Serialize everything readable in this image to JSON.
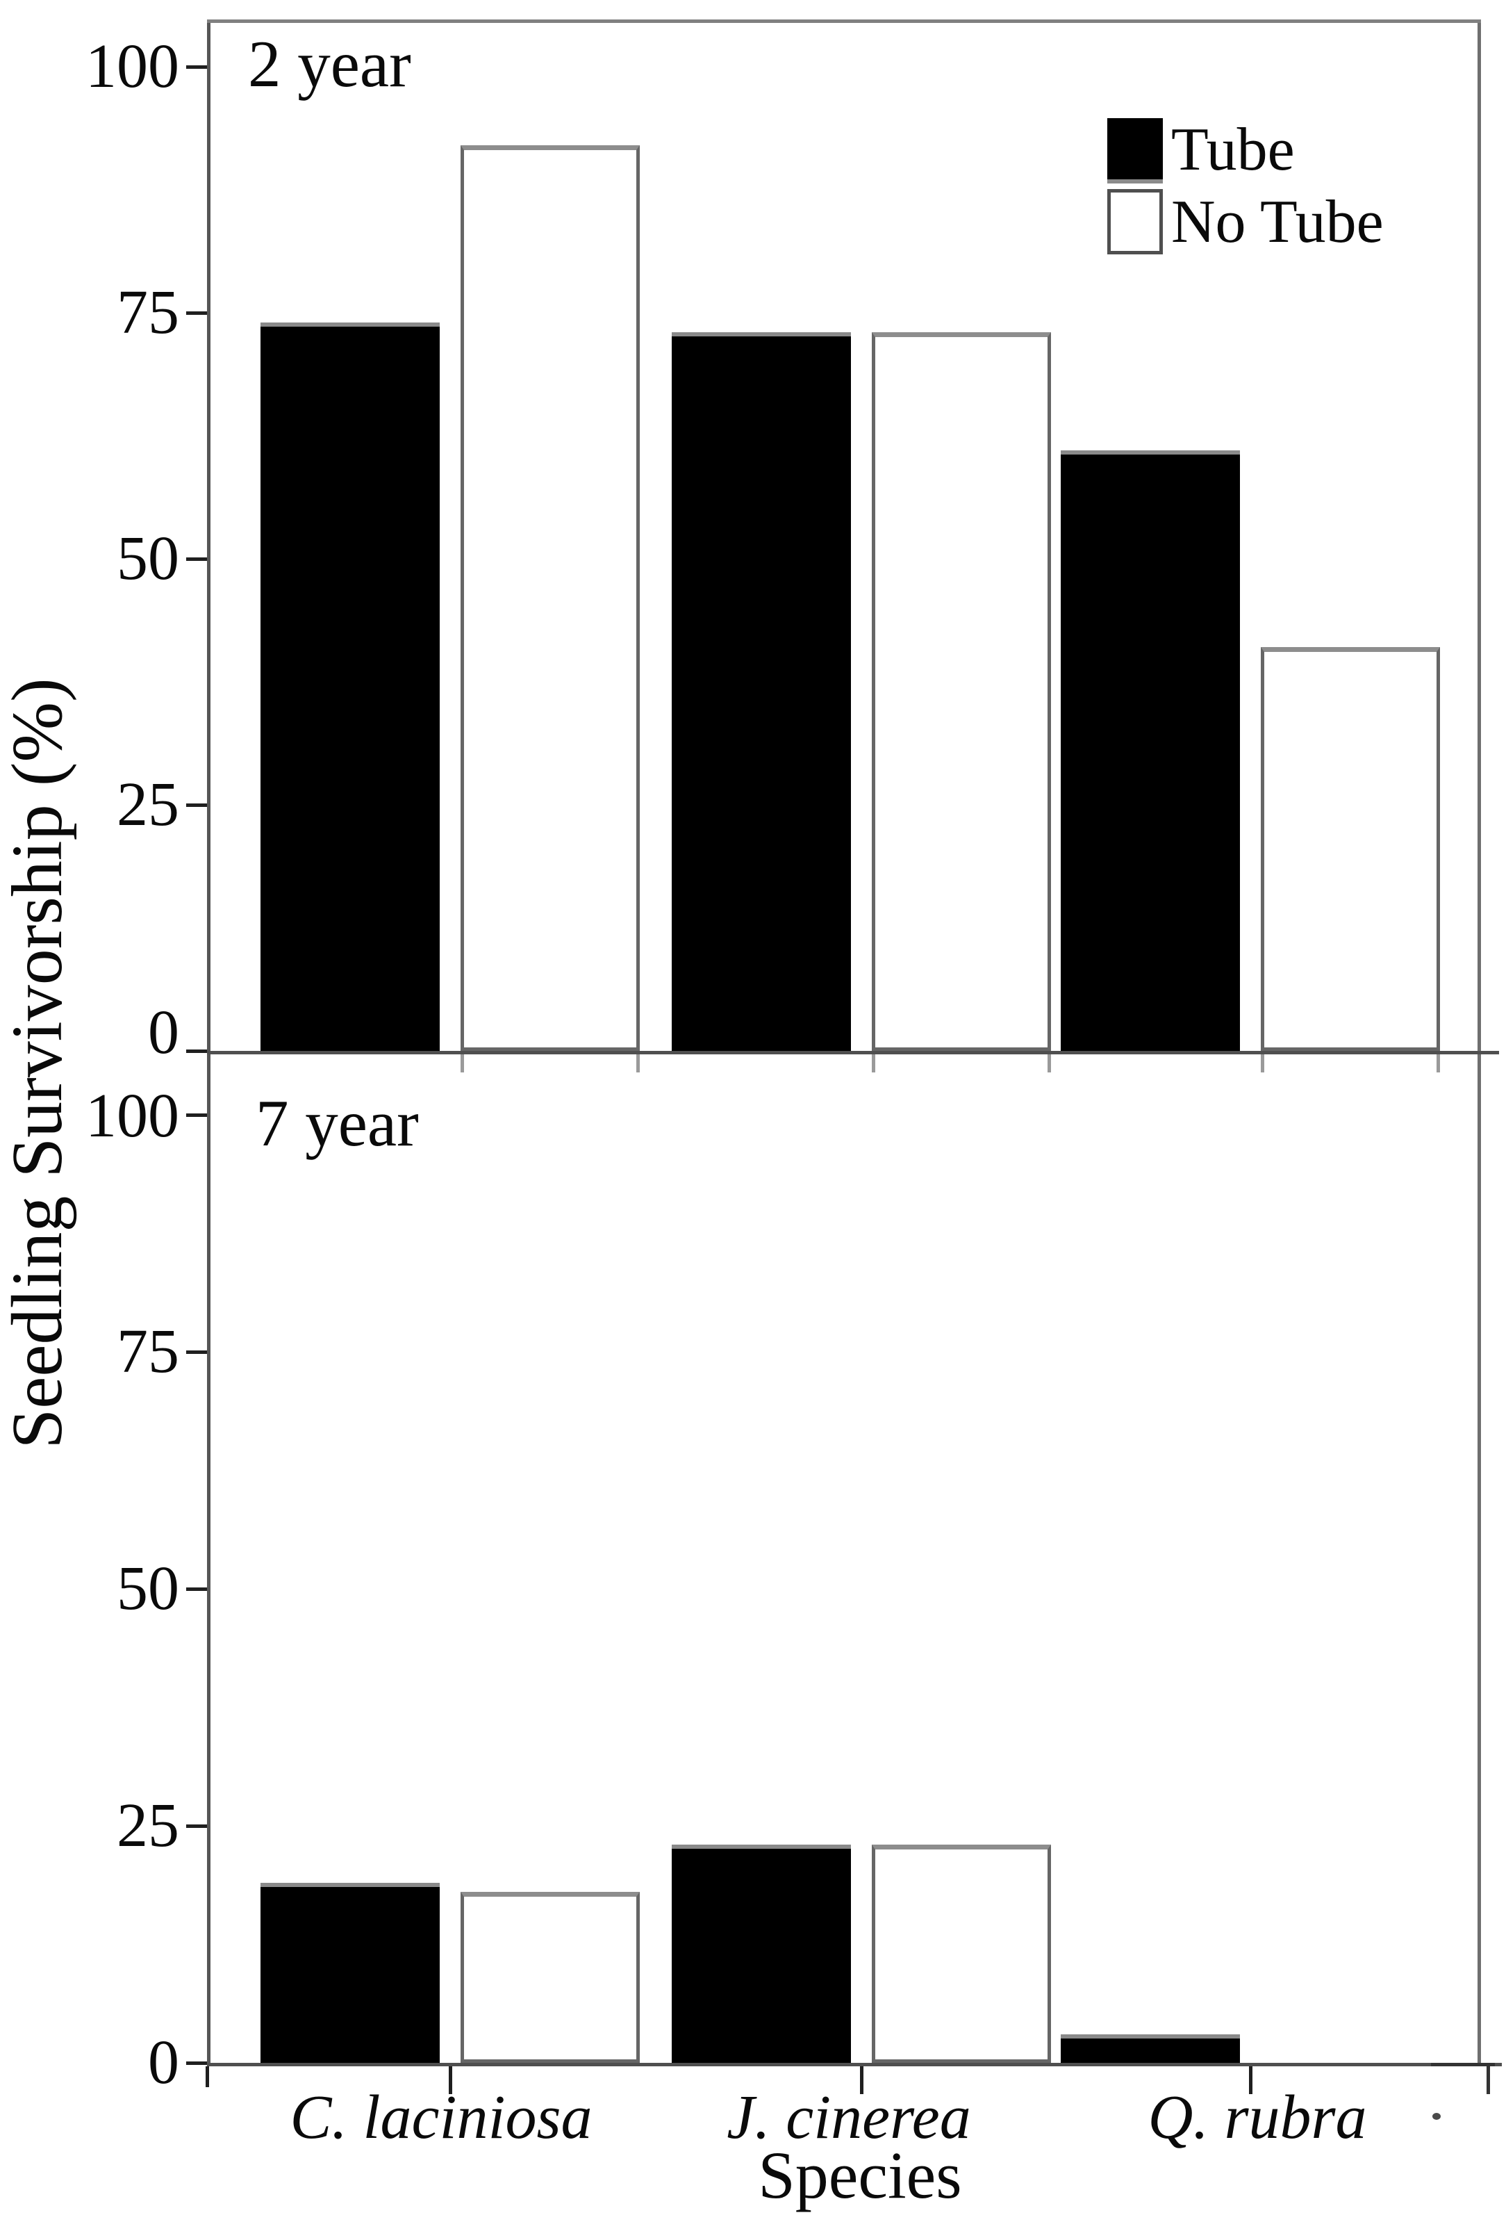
{
  "figure": {
    "ylabel": "Seedling Survivorship (%)",
    "xlabel": "Species",
    "background": "#ffffff",
    "text_color": "#0a0a0a",
    "axis_color": "#5f5f5f",
    "tick_color": "#1f1f1f",
    "bar_outline_color": "#666666",
    "legend": {
      "items": [
        {
          "label": "Tube",
          "fill": "#000000",
          "swatch": "filled-square-icon"
        },
        {
          "label": "No Tube",
          "fill": "#ffffff",
          "swatch": "open-square-icon"
        }
      ]
    }
  },
  "chart_data": [
    {
      "type": "bar",
      "title": "2 year",
      "categories": [
        "C. laciniosa",
        "J. cinerea",
        "Q. rubra"
      ],
      "series": [
        {
          "name": "Tube",
          "fill": "#000000",
          "values": [
            74,
            73,
            61
          ]
        },
        {
          "name": "No Tube",
          "fill": "#ffffff",
          "values": [
            92,
            73,
            41
          ]
        }
      ],
      "ylabel": "Seedling Survivorship (%)",
      "xlabel": "Species",
      "ylim": [
        0,
        100
      ],
      "yticks": [
        0,
        25,
        50,
        75,
        100
      ],
      "grid": false,
      "legend_position": "upper right"
    },
    {
      "type": "bar",
      "title": "7 year",
      "categories": [
        "C. laciniosa",
        "J. cinerea",
        "Q. rubra"
      ],
      "series": [
        {
          "name": "Tube",
          "fill": "#000000",
          "values": [
            19,
            23,
            3
          ]
        },
        {
          "name": "No Tube",
          "fill": "#ffffff",
          "values": [
            18,
            23,
            0
          ]
        }
      ],
      "ylabel": "Seedling Survivorship (%)",
      "xlabel": "Species",
      "ylim": [
        0,
        100
      ],
      "yticks": [
        0,
        25,
        50,
        75,
        100
      ],
      "grid": false,
      "legend_position": "none"
    }
  ]
}
